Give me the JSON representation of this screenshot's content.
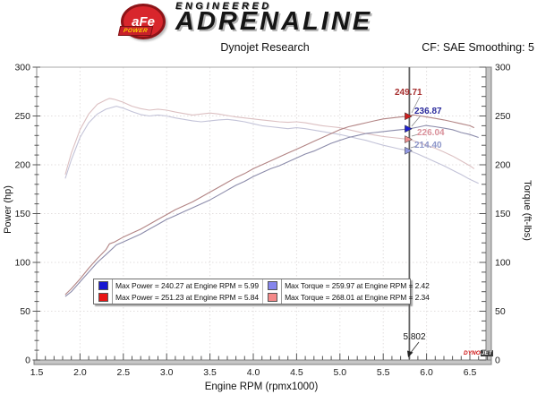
{
  "header": {
    "logo_afe": "aFe",
    "logo_power": "POWER",
    "brand_line1": "ENGINEERED",
    "brand_line2": "ADRENALINE",
    "subtitle": "Dynojet Research",
    "smoothing_label": "CF: SAE Smoothing: 5"
  },
  "chart": {
    "ylabel_left": "Power (hp)",
    "ylabel_right": "Torque (ft-lbs)",
    "xlabel": "Engine RPM (rpmx1000)",
    "watermark_1": "DYNO",
    "watermark_2": "JET"
  },
  "legend": {
    "items": [
      {
        "color": "#1818d2",
        "label": "Max Power = 240.27 at Engine RPM = 5.99"
      },
      {
        "color": "#8585ec",
        "label": "Max Torque = 259.97 at Engine RPM = 2.42"
      },
      {
        "color": "#e81414",
        "label": "Max Power = 251.23 at Engine RPM = 5.84"
      },
      {
        "color": "#f48989",
        "label": "Max Torque = 268.01 at Engine RPM = 2.34"
      }
    ]
  },
  "chart_data": {
    "type": "line",
    "title": "Dynojet Research",
    "xlabel": "Engine RPM (rpmx1000)",
    "ylabel_left": "Power (hp)",
    "ylabel_right": "Torque (ft-lbs)",
    "xlim": [
      1.5,
      6.69
    ],
    "ylim": [
      0,
      300
    ],
    "x_ticks": [
      1.5,
      2.0,
      2.5,
      3.0,
      3.5,
      4.0,
      4.5,
      5.0,
      5.5,
      6.0,
      6.5
    ],
    "y_ticks": [
      0,
      50,
      100,
      150,
      200,
      250,
      300
    ],
    "x_minor_step": 0.1,
    "y_minor_step": 10,
    "grid": true,
    "legend_position": "lower-center",
    "smoothing": "CF: SAE Smoothing: 5",
    "cursor": {
      "rpm": 5.802,
      "rpm_label": "5.802",
      "values": [
        {
          "text": "249.71",
          "value": 249.71,
          "label_color": "#a62e2e",
          "marker_color": "#cc2020"
        },
        {
          "text": "236.87",
          "value": 236.87,
          "label_color": "#2a2a9c",
          "marker_color": "#2020cc"
        },
        {
          "text": "226.04",
          "value": 226.04,
          "label_color": "#d9909a",
          "marker_color": "#ee8f8f"
        },
        {
          "text": "214.40",
          "value": 214.4,
          "label_color": "#8d96c9",
          "marker_color": "#9298e0"
        }
      ]
    },
    "series": [
      {
        "id": "torque-red",
        "axis": "torque",
        "max": 268.01,
        "max_rpm": 2.34,
        "line_color": "#dcc0c2",
        "points": [
          [
            1.83,
            190
          ],
          [
            1.9,
            212
          ],
          [
            2.0,
            236
          ],
          [
            2.1,
            252
          ],
          [
            2.2,
            262
          ],
          [
            2.3,
            266.5
          ],
          [
            2.34,
            268
          ],
          [
            2.4,
            267
          ],
          [
            2.5,
            264
          ],
          [
            2.6,
            260
          ],
          [
            2.7,
            257.5
          ],
          [
            2.8,
            256
          ],
          [
            2.9,
            257
          ],
          [
            3.0,
            256
          ],
          [
            3.1,
            254
          ],
          [
            3.2,
            252.5
          ],
          [
            3.3,
            251
          ],
          [
            3.4,
            252
          ],
          [
            3.5,
            253
          ],
          [
            3.6,
            252
          ],
          [
            3.7,
            250.5
          ],
          [
            3.8,
            249
          ],
          [
            3.9,
            248
          ],
          [
            4.0,
            247
          ],
          [
            4.1,
            246
          ],
          [
            4.2,
            245
          ],
          [
            4.3,
            244
          ],
          [
            4.4,
            243.5
          ],
          [
            4.5,
            244
          ],
          [
            4.6,
            243
          ],
          [
            4.7,
            241.5
          ],
          [
            4.8,
            240
          ],
          [
            4.9,
            239
          ],
          [
            5.0,
            238
          ],
          [
            5.1,
            236
          ],
          [
            5.2,
            234
          ],
          [
            5.3,
            232
          ],
          [
            5.4,
            230.5
          ],
          [
            5.5,
            229
          ],
          [
            5.6,
            228
          ],
          [
            5.7,
            227
          ],
          [
            5.802,
            226.04
          ],
          [
            5.9,
            223
          ],
          [
            6.0,
            220
          ],
          [
            6.1,
            217
          ],
          [
            6.2,
            213
          ],
          [
            6.3,
            209
          ],
          [
            6.4,
            204
          ],
          [
            6.5,
            199
          ],
          [
            6.55,
            196
          ]
        ]
      },
      {
        "id": "torque-blue",
        "axis": "torque",
        "max": 259.97,
        "max_rpm": 2.42,
        "line_color": "#c3c3d8",
        "points": [
          [
            1.83,
            186
          ],
          [
            1.9,
            205
          ],
          [
            2.0,
            228
          ],
          [
            2.1,
            243
          ],
          [
            2.2,
            252
          ],
          [
            2.3,
            257
          ],
          [
            2.42,
            259.97
          ],
          [
            2.5,
            258
          ],
          [
            2.6,
            254.5
          ],
          [
            2.7,
            251.5
          ],
          [
            2.8,
            250
          ],
          [
            2.9,
            251
          ],
          [
            3.0,
            250
          ],
          [
            3.1,
            248
          ],
          [
            3.2,
            246.5
          ],
          [
            3.3,
            245
          ],
          [
            3.4,
            244
          ],
          [
            3.5,
            245
          ],
          [
            3.6,
            246
          ],
          [
            3.7,
            246.5
          ],
          [
            3.8,
            245.5
          ],
          [
            3.9,
            244
          ],
          [
            4.0,
            242
          ],
          [
            4.1,
            240
          ],
          [
            4.2,
            239
          ],
          [
            4.3,
            238
          ],
          [
            4.4,
            237
          ],
          [
            4.5,
            238
          ],
          [
            4.6,
            237
          ],
          [
            4.7,
            235.5
          ],
          [
            4.8,
            234
          ],
          [
            4.9,
            232.5
          ],
          [
            5.0,
            231
          ],
          [
            5.1,
            229
          ],
          [
            5.2,
            227
          ],
          [
            5.3,
            225
          ],
          [
            5.4,
            222.5
          ],
          [
            5.5,
            220
          ],
          [
            5.6,
            218
          ],
          [
            5.7,
            216
          ],
          [
            5.802,
            214.4
          ],
          [
            5.9,
            211
          ],
          [
            6.0,
            207
          ],
          [
            6.1,
            203
          ],
          [
            6.2,
            199
          ],
          [
            6.3,
            194.5
          ],
          [
            6.4,
            190
          ],
          [
            6.5,
            185
          ],
          [
            6.6,
            181
          ]
        ]
      },
      {
        "id": "power-red",
        "axis": "power",
        "max": 251.23,
        "max_rpm": 5.84,
        "line_color": "#b28484",
        "points": [
          [
            1.83,
            67
          ],
          [
            1.9,
            73
          ],
          [
            2.0,
            83
          ],
          [
            2.1,
            94
          ],
          [
            2.2,
            104
          ],
          [
            2.3,
            113
          ],
          [
            2.34,
            119
          ],
          [
            2.4,
            121
          ],
          [
            2.5,
            126
          ],
          [
            2.6,
            130
          ],
          [
            2.7,
            134
          ],
          [
            2.8,
            139
          ],
          [
            2.9,
            144
          ],
          [
            3.0,
            149
          ],
          [
            3.1,
            154
          ],
          [
            3.2,
            158
          ],
          [
            3.3,
            162
          ],
          [
            3.4,
            167
          ],
          [
            3.5,
            172
          ],
          [
            3.6,
            177
          ],
          [
            3.7,
            182
          ],
          [
            3.8,
            187
          ],
          [
            3.9,
            191
          ],
          [
            4.0,
            196
          ],
          [
            4.1,
            200
          ],
          [
            4.2,
            204
          ],
          [
            4.3,
            208
          ],
          [
            4.4,
            212
          ],
          [
            4.5,
            216
          ],
          [
            4.6,
            220
          ],
          [
            4.7,
            224
          ],
          [
            4.8,
            228
          ],
          [
            4.9,
            232
          ],
          [
            5.0,
            236
          ],
          [
            5.1,
            239
          ],
          [
            5.2,
            241
          ],
          [
            5.3,
            243
          ],
          [
            5.4,
            245
          ],
          [
            5.5,
            247
          ],
          [
            5.6,
            248
          ],
          [
            5.7,
            249
          ],
          [
            5.802,
            249.71
          ],
          [
            5.84,
            251.23
          ],
          [
            5.9,
            250.5
          ],
          [
            6.0,
            249
          ],
          [
            6.1,
            247.5
          ],
          [
            6.2,
            246
          ],
          [
            6.3,
            244
          ],
          [
            6.4,
            242
          ],
          [
            6.5,
            240
          ],
          [
            6.55,
            238
          ]
        ]
      },
      {
        "id": "power-blue",
        "axis": "power",
        "max": 240.27,
        "max_rpm": 5.99,
        "line_color": "#8c8cab",
        "points": [
          [
            1.83,
            65
          ],
          [
            1.9,
            70
          ],
          [
            2.0,
            80
          ],
          [
            2.1,
            90
          ],
          [
            2.2,
            100
          ],
          [
            2.3,
            108
          ],
          [
            2.42,
            118
          ],
          [
            2.5,
            121
          ],
          [
            2.6,
            125
          ],
          [
            2.7,
            129
          ],
          [
            2.8,
            134
          ],
          [
            2.9,
            139
          ],
          [
            3.0,
            144
          ],
          [
            3.1,
            148
          ],
          [
            3.2,
            152
          ],
          [
            3.3,
            156
          ],
          [
            3.4,
            160
          ],
          [
            3.5,
            164
          ],
          [
            3.6,
            169
          ],
          [
            3.7,
            174
          ],
          [
            3.8,
            179
          ],
          [
            3.9,
            183
          ],
          [
            4.0,
            188
          ],
          [
            4.1,
            192
          ],
          [
            4.2,
            196
          ],
          [
            4.3,
            199
          ],
          [
            4.4,
            203
          ],
          [
            4.5,
            207
          ],
          [
            4.6,
            211
          ],
          [
            4.7,
            214
          ],
          [
            4.8,
            218
          ],
          [
            4.9,
            222
          ],
          [
            5.0,
            225
          ],
          [
            5.1,
            228
          ],
          [
            5.2,
            230
          ],
          [
            5.3,
            232
          ],
          [
            5.4,
            233
          ],
          [
            5.5,
            234
          ],
          [
            5.6,
            235
          ],
          [
            5.7,
            236
          ],
          [
            5.802,
            236.87
          ],
          [
            5.9,
            238.5
          ],
          [
            5.99,
            240.27
          ],
          [
            6.1,
            239
          ],
          [
            6.2,
            237.5
          ],
          [
            6.3,
            236
          ],
          [
            6.4,
            233
          ],
          [
            6.5,
            231
          ],
          [
            6.6,
            228
          ]
        ]
      }
    ]
  }
}
